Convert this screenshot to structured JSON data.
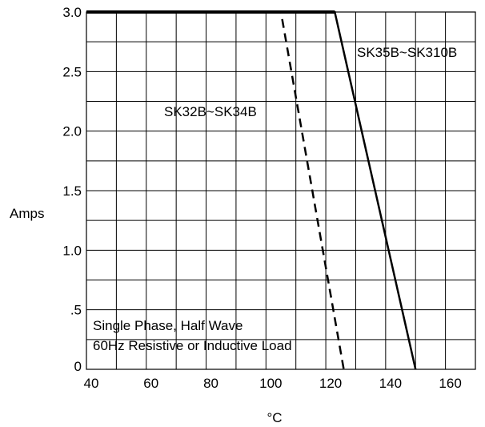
{
  "chart_data": {
    "type": "line",
    "title": "",
    "xlabel": "°C",
    "ylabel": "Amps",
    "xlim": [
      40,
      170
    ],
    "ylim": [
      0,
      3.0
    ],
    "x_ticks": [
      40,
      60,
      80,
      100,
      120,
      140,
      160
    ],
    "y_ticks": [
      0,
      0.5,
      1.0,
      1.5,
      2.0,
      2.5,
      3.0
    ],
    "x_tick_labels": [
      "40",
      "60",
      "80",
      "100",
      "120",
      "140",
      "160"
    ],
    "y_tick_labels": [
      "0",
      ".5",
      "1.0",
      "1.5",
      "2.0",
      "2.5",
      "3.0"
    ],
    "x_minor_grid": [
      50,
      70,
      90,
      110,
      130,
      150
    ],
    "y_minor_grid": [
      0.25,
      0.75,
      1.25,
      1.75,
      2.25,
      2.75
    ],
    "grid": true,
    "series": [
      {
        "name": "SK32B~SK34B",
        "style": "dashed",
        "color": "#000000",
        "points": [
          [
            40,
            3.0
          ],
          [
            105,
            3.0
          ],
          [
            126,
            0
          ]
        ]
      },
      {
        "name": "SK35B~SK310B",
        "style": "solid",
        "color": "#000000",
        "points": [
          [
            40,
            3.0
          ],
          [
            123,
            3.0
          ],
          [
            150,
            0
          ]
        ]
      }
    ],
    "annotations": [
      "Single Phase, Half Wave",
      "60Hz Resistive or Inductive Load"
    ]
  }
}
